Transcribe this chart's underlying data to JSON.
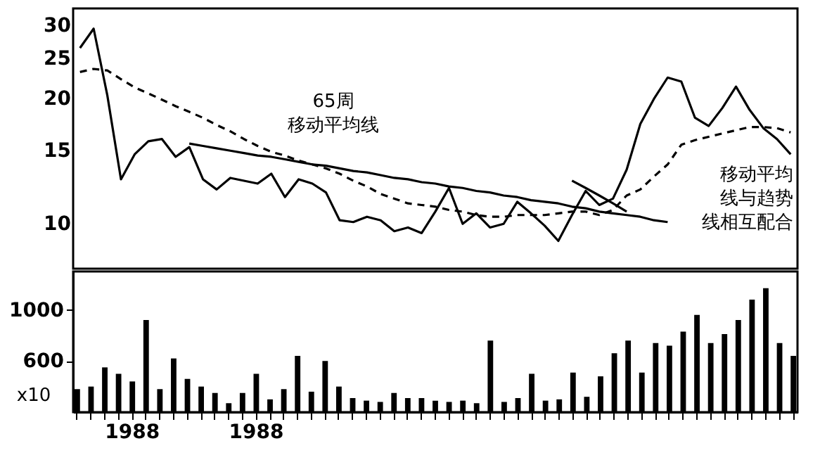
{
  "chart_data": [
    {
      "type": "line",
      "log": "y",
      "ylim": [
        7.8,
        33
      ],
      "yticks": [
        10,
        15,
        20,
        25,
        30
      ],
      "tick_labels": "y",
      "grid": false,
      "legend": false,
      "categories": [
        null,
        null,
        null,
        null,
        "1988",
        null,
        null,
        null,
        null,
        null,
        null,
        null,
        null,
        "1988",
        null,
        null,
        null,
        null,
        null,
        null,
        null,
        null,
        null,
        null,
        null,
        null,
        null,
        null,
        null,
        null,
        null,
        null,
        null,
        null,
        null,
        null,
        null,
        null,
        null,
        null,
        null,
        null,
        null,
        null,
        null,
        null,
        null,
        null,
        null,
        null,
        null,
        null,
        null
      ],
      "series": [
        {
          "color": "#000000",
          "line_style": "solid",
          "values": [
            26.5,
            29.5,
            20.4,
            12.8,
            14.7,
            15.8,
            16,
            14.5,
            15.3,
            12.8,
            12.1,
            12.9,
            12.7,
            12.5,
            13.2,
            11.6,
            12.8,
            12.5,
            11.9,
            10.2,
            10.1,
            10.4,
            10.2,
            9.6,
            9.8,
            9.5,
            10.7,
            12.2,
            10,
            10.6,
            9.8,
            10,
            11.3,
            10.6,
            9.9,
            9.1,
            10.5,
            12,
            11.1,
            11.5,
            13.5,
            17.4,
            20,
            22.5,
            22,
            18,
            17.2,
            19,
            21.4,
            18.8,
            17,
            16,
            14.7
          ]
        },
        {
          "color": "#000000",
          "line_style": "dashed",
          "values": [
            23.2,
            23.6,
            23.4,
            22.3,
            21.3,
            20.6,
            19.9,
            19.2,
            18.6,
            18,
            17.3,
            16.7,
            16,
            15.4,
            14.9,
            14.6,
            14.2,
            13.9,
            13.6,
            13.2,
            12.7,
            12.3,
            11.8,
            11.5,
            11.2,
            11.1,
            11,
            10.8,
            10.7,
            10.5,
            10.4,
            10.4,
            10.5,
            10.5,
            10.5,
            10.6,
            10.7,
            10.7,
            10.5,
            10.8,
            11.7,
            12.1,
            13,
            13.9,
            15.5,
            15.9,
            16.2,
            16.5,
            16.8,
            17.1,
            17.1,
            17,
            16.6
          ]
        },
        {
          "color": "#000000",
          "line_style": "solid",
          "values": [
            null,
            null,
            null,
            null,
            null,
            null,
            null,
            null,
            15.6,
            15.4,
            15.2,
            15,
            14.8,
            14.6,
            14.5,
            14.3,
            14.1,
            13.9,
            13.8,
            13.6,
            13.4,
            13.3,
            13.1,
            12.9,
            12.8,
            12.6,
            12.5,
            12.3,
            12.2,
            12,
            11.9,
            11.7,
            11.6,
            11.4,
            11.3,
            11.2,
            11,
            10.9,
            10.7,
            10.6,
            10.5,
            10.4,
            10.2,
            10.1,
            null,
            null,
            null,
            null,
            null,
            null,
            null,
            null,
            null
          ]
        },
        {
          "color": "#000000",
          "line_style": "solid",
          "values": [
            null,
            null,
            null,
            null,
            null,
            null,
            null,
            null,
            null,
            null,
            null,
            null,
            null,
            null,
            null,
            null,
            null,
            null,
            null,
            null,
            null,
            null,
            null,
            null,
            null,
            null,
            null,
            null,
            null,
            null,
            null,
            null,
            null,
            null,
            null,
            null,
            12.7,
            12.2,
            11.7,
            11.2,
            10.7,
            null,
            null,
            null,
            null,
            null,
            null,
            null,
            null,
            null,
            null,
            null,
            null
          ]
        }
      ],
      "annotations": [
        "65周",
        "移动平均线",
        "移动平均",
        "线与趋势",
        "线相互配合"
      ]
    },
    {
      "type": "bar",
      "ylim": [
        200,
        1300
      ],
      "yticks": [
        600,
        {
          "value": 1000,
          "label": "1000"
        }
      ],
      "grid": false,
      "legend": false,
      "categories": [
        null,
        null,
        null,
        null,
        "1988",
        null,
        null,
        null,
        null,
        null,
        null,
        null,
        null,
        "1988",
        null,
        null,
        null,
        null,
        null,
        null,
        null,
        null,
        null,
        null,
        null,
        null,
        null,
        null,
        null,
        null,
        null,
        null,
        null,
        null,
        null,
        null,
        null,
        null,
        null,
        null,
        null,
        null,
        null,
        null,
        null,
        null,
        null,
        null,
        null,
        null,
        null,
        null,
        null
      ],
      "values": [
        380,
        400,
        550,
        500,
        440,
        920,
        380,
        620,
        460,
        400,
        350,
        270,
        350,
        500,
        300,
        380,
        640,
        360,
        600,
        400,
        310,
        290,
        280,
        350,
        310,
        310,
        290,
        280,
        290,
        270,
        760,
        280,
        310,
        500,
        290,
        300,
        510,
        320,
        480,
        660,
        760,
        510,
        740,
        720,
        830,
        960,
        740,
        810,
        920,
        1080,
        1170,
        740,
        640
      ],
      "color": "#000000",
      "annotations": [
        "x10"
      ]
    }
  ]
}
